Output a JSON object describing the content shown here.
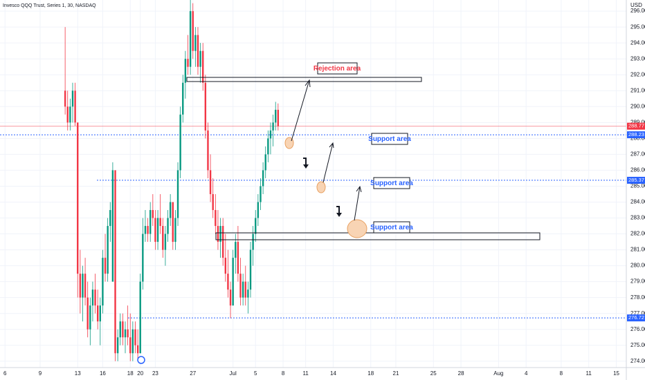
{
  "chart_data": {
    "type": "candlestick",
    "title": "Invesco QQQ Trust, Series 1, 30, NASDAQ",
    "currency": "USD",
    "up_color": "#089981",
    "down_color": "#f23645",
    "grid": true,
    "xlim": [
      0,
      250
    ],
    "ylim": [
      273.6,
      296.7
    ],
    "yticks": [
      {
        "value": 274,
        "label": "274.00"
      },
      {
        "value": 275,
        "label": "275.00"
      },
      {
        "value": 276,
        "label": "276.00"
      },
      {
        "value": 277,
        "label": "277.00"
      },
      {
        "value": 278,
        "label": "278.00"
      },
      {
        "value": 279,
        "label": "279.00"
      },
      {
        "value": 280,
        "label": "280.00"
      },
      {
        "value": 281,
        "label": "281.00"
      },
      {
        "value": 282,
        "label": "282.00"
      },
      {
        "value": 283,
        "label": "283.00"
      },
      {
        "value": 284,
        "label": "284.00"
      },
      {
        "value": 285,
        "label": "285.00"
      },
      {
        "value": 286,
        "label": "286.00"
      },
      {
        "value": 287,
        "label": "287.00"
      },
      {
        "value": 288,
        "label": "288.00"
      },
      {
        "value": 289,
        "label": "289.00"
      },
      {
        "value": 290,
        "label": "290.00"
      },
      {
        "value": 291,
        "label": "291.00"
      },
      {
        "value": 292,
        "label": "292.00"
      },
      {
        "value": 293,
        "label": "293.00"
      },
      {
        "value": 294,
        "label": "294.00"
      },
      {
        "value": 295,
        "label": "295.00"
      },
      {
        "value": 296,
        "label": "296.00"
      }
    ],
    "xticks": [
      {
        "value": 2,
        "label": "6"
      },
      {
        "value": 16,
        "label": "9"
      },
      {
        "value": 31,
        "label": "13"
      },
      {
        "value": 41,
        "label": "16"
      },
      {
        "value": 52,
        "label": "18"
      },
      {
        "value": 56,
        "label": "20"
      },
      {
        "value": 62,
        "label": "23"
      },
      {
        "value": 77,
        "label": "27"
      },
      {
        "value": 93,
        "label": "Jul"
      },
      {
        "value": 102,
        "label": "5"
      },
      {
        "value": 113,
        "label": "8"
      },
      {
        "value": 122,
        "label": "11"
      },
      {
        "value": 133,
        "label": "14"
      },
      {
        "value": 148,
        "label": "18"
      },
      {
        "value": 158,
        "label": "21"
      },
      {
        "value": 173,
        "label": "25"
      },
      {
        "value": 184,
        "label": "28"
      },
      {
        "value": 199,
        "label": "Aug"
      },
      {
        "value": 210,
        "label": "4"
      },
      {
        "value": 224,
        "label": "8"
      },
      {
        "value": 235,
        "label": "11"
      },
      {
        "value": 246,
        "label": "15"
      }
    ],
    "x": [
      26,
      27,
      28,
      29,
      30,
      31,
      32,
      33,
      34,
      35,
      36,
      37,
      38,
      39,
      40,
      41,
      42,
      43,
      44,
      45,
      46,
      47,
      48,
      49,
      50,
      51,
      52,
      53,
      54,
      55,
      56,
      57,
      58,
      59,
      60,
      61,
      62,
      63,
      64,
      65,
      66,
      67,
      68,
      69,
      70,
      71,
      72,
      73,
      74,
      75,
      76,
      77,
      78,
      79,
      80,
      81,
      82,
      83,
      84,
      85,
      86,
      87,
      88,
      89,
      90,
      91,
      92,
      93,
      94,
      95,
      96,
      97,
      98,
      99,
      100,
      101,
      102,
      103,
      104,
      105,
      106,
      107,
      108,
      109,
      110,
      111
    ],
    "open": [
      291,
      290,
      289,
      290,
      291,
      289,
      279.5,
      278,
      279.5,
      278,
      276,
      277.5,
      278.5,
      277.5,
      276.5,
      277.5,
      280.5,
      279.5,
      282.5,
      279,
      286,
      274.5,
      275.5,
      276.5,
      275.5,
      276,
      275.5,
      274.5,
      276,
      275,
      274.5,
      279,
      282,
      282.5,
      282,
      283.5,
      283,
      281.5,
      283,
      282.5,
      281,
      282,
      283,
      284,
      281.5,
      283,
      286,
      289.5,
      291.5,
      293,
      292.5,
      296,
      293.5,
      294.5,
      292.5,
      293.5,
      291.5,
      288.5,
      286,
      284.5,
      283.5,
      282.5,
      281.5,
      282.5,
      280.5,
      279.5,
      278.5,
      277.5,
      280.5,
      281.5,
      279.5,
      278,
      279,
      278,
      278.5,
      281,
      282,
      283,
      284,
      285,
      286,
      287,
      288,
      288.5,
      289,
      289.8
    ],
    "high": [
      295,
      291,
      290.5,
      291.5,
      291.5,
      289,
      281,
      280,
      280.5,
      279,
      278,
      279,
      279.5,
      278.5,
      278,
      281,
      282,
      283,
      284,
      286.5,
      286,
      276,
      277,
      277,
      276.5,
      277.5,
      277,
      276.5,
      276.5,
      276,
      279.5,
      283,
      283.5,
      283,
      284,
      284.5,
      283.5,
      283.5,
      284.5,
      283,
      282.5,
      283.5,
      284.5,
      284,
      283.5,
      286.5,
      290,
      292,
      293.5,
      294.5,
      297.2,
      296.5,
      295,
      295,
      294,
      294,
      292,
      289,
      287,
      285.5,
      284.5,
      283.5,
      283,
      283,
      282,
      281,
      279,
      281,
      282,
      282.5,
      280.5,
      279.5,
      280,
      279,
      281.5,
      282.5,
      283.5,
      284.5,
      285.5,
      286.5,
      287.5,
      288.5,
      289,
      289.5,
      290.3,
      290.2
    ],
    "low": [
      289.5,
      288.5,
      288.5,
      289,
      288.8,
      278,
      277,
      276.5,
      277.5,
      275.5,
      275,
      276.5,
      277,
      276,
      275,
      277,
      279,
      279,
      281.5,
      279,
      274,
      274,
      275,
      275,
      274.5,
      275,
      274,
      274,
      274.5,
      274,
      274.5,
      278.5,
      281.5,
      281.5,
      281.5,
      282.5,
      281,
      281,
      282,
      280.5,
      280,
      281.5,
      282.5,
      281,
      281,
      282.5,
      285.5,
      289,
      290.5,
      292,
      292,
      293,
      292.5,
      292,
      291.5,
      291,
      288,
      285.5,
      284,
      283,
      282,
      281,
      280.5,
      280,
      279,
      278,
      276.7,
      277.5,
      279.5,
      279,
      277.5,
      277.5,
      277.5,
      277,
      278,
      280,
      281.5,
      282.5,
      283.5,
      284.5,
      285.5,
      286.5,
      287,
      287.5,
      288.5,
      288.5
    ],
    "close": [
      290,
      289,
      290,
      291,
      289,
      279.5,
      278,
      279.5,
      278,
      276,
      277.5,
      278.5,
      277.5,
      276.5,
      277.5,
      280.5,
      279.5,
      282.5,
      283.5,
      286,
      274.5,
      275.5,
      276.5,
      275.5,
      276,
      275.5,
      274.5,
      276,
      275,
      274.5,
      279,
      282,
      282.5,
      282,
      283.5,
      283,
      281.5,
      283,
      282.5,
      281,
      282,
      283,
      284,
      281.5,
      283,
      286,
      289.5,
      291.5,
      293,
      292.5,
      296,
      293.5,
      294.5,
      292.5,
      293.5,
      291.5,
      288.5,
      286,
      284.5,
      283.5,
      282.5,
      281.5,
      282.5,
      280.5,
      279.5,
      278.5,
      277.5,
      280.5,
      281.5,
      279.5,
      278,
      279,
      278,
      278.5,
      281,
      282,
      283,
      284,
      285,
      286,
      287,
      288,
      288.5,
      289,
      289.8,
      288.77
    ],
    "price_lines": [
      {
        "value": 288.77,
        "color": "#f23645",
        "style": "solid"
      },
      {
        "value": 288.23,
        "color": "#2962ff",
        "style": "dotted"
      },
      {
        "value": 285.37,
        "color": "#2962ff",
        "style": "dotted"
      },
      {
        "value": 276.72,
        "color": "#2962ff",
        "style": "dotted"
      }
    ],
    "annotations": {
      "rejection": "Rejection area",
      "support_1": "Support area",
      "support_2": "Support area",
      "support_3": "Support area"
    }
  }
}
